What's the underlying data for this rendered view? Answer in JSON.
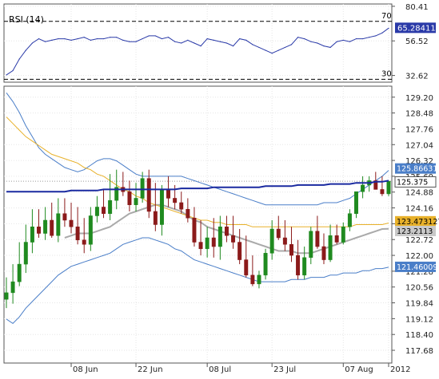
{
  "chart_data": [
    {
      "type": "line",
      "title": "RSI (14)",
      "ylim": [
        28,
        82
      ],
      "y_ticks": [
        "80.41",
        "56.52",
        "32.62"
      ],
      "levels": [
        {
          "value": 70,
          "label": "70"
        },
        {
          "value": 30,
          "label": "30"
        }
      ],
      "last_value_label": "65.28411",
      "x": [
        "2012-05-25",
        "2012-05-28",
        "2012-05-29",
        "2012-05-30",
        "2012-05-31",
        "2012-06-01",
        "2012-06-04",
        "2012-06-05",
        "2012-06-06",
        "2012-06-07",
        "2012-06-08",
        "2012-06-11",
        "2012-06-12",
        "2012-06-13",
        "2012-06-14",
        "2012-06-15",
        "2012-06-18",
        "2012-06-19",
        "2012-06-20",
        "2012-06-21",
        "2012-06-22",
        "2012-06-25",
        "2012-06-26",
        "2012-06-27",
        "2012-06-28",
        "2012-06-29",
        "2012-07-02",
        "2012-07-03",
        "2012-07-04",
        "2012-07-05",
        "2012-07-06",
        "2012-07-09",
        "2012-07-10",
        "2012-07-11",
        "2012-07-12",
        "2012-07-13",
        "2012-07-16",
        "2012-07-17",
        "2012-07-18",
        "2012-07-19",
        "2012-07-20",
        "2012-07-23",
        "2012-07-24",
        "2012-07-25",
        "2012-07-26",
        "2012-07-27",
        "2012-07-30",
        "2012-07-31",
        "2012-08-01",
        "2012-08-02",
        "2012-08-03",
        "2012-08-06",
        "2012-08-07",
        "2012-08-08",
        "2012-08-09",
        "2012-08-10",
        "2012-08-13",
        "2012-08-14",
        "2012-08-15",
        "2012-08-16"
      ],
      "values": [
        33,
        36,
        44,
        50,
        55,
        58,
        56,
        57,
        58,
        58,
        57,
        58,
        59,
        57,
        58,
        58,
        59,
        59,
        57,
        56,
        56,
        58,
        60,
        60,
        58,
        59,
        56,
        55,
        57,
        55,
        53,
        58,
        57,
        56,
        55,
        53,
        58,
        57,
        54,
        52,
        50,
        48,
        50,
        52,
        54,
        59,
        58,
        56,
        55,
        53,
        52,
        56,
        57,
        56,
        58,
        58,
        59,
        60,
        62,
        65.28
      ],
      "color": "#2a3aa8"
    },
    {
      "type": "candlestick",
      "ylim": [
        117.1,
        129.7
      ],
      "y_ticks": [
        "129.20",
        "128.48",
        "127.76",
        "127.04",
        "126.32",
        "125.60",
        "124.88",
        "124.16",
        "123.44",
        "122.72",
        "122.00",
        "121.28",
        "120.56",
        "119.84",
        "119.12",
        "118.40",
        "117.68"
      ],
      "x_ticks": [
        {
          "date": "2012-06-08",
          "label": "08 Jun"
        },
        {
          "date": "2012-06-22",
          "label": "22 Jun"
        },
        {
          "date": "2012-07-09",
          "label": "08 Jul"
        },
        {
          "date": "2012-07-23",
          "label": "23 Jul"
        },
        {
          "date": "2012-08-07",
          "label": "07 Aug"
        },
        {
          "date": "2012-08-16",
          "label": "2012"
        }
      ],
      "x": [
        "2012-05-25",
        "2012-05-28",
        "2012-05-29",
        "2012-05-30",
        "2012-05-31",
        "2012-06-01",
        "2012-06-04",
        "2012-06-05",
        "2012-06-06",
        "2012-06-07",
        "2012-06-08",
        "2012-06-11",
        "2012-06-12",
        "2012-06-13",
        "2012-06-14",
        "2012-06-15",
        "2012-06-18",
        "2012-06-19",
        "2012-06-20",
        "2012-06-21",
        "2012-06-22",
        "2012-06-25",
        "2012-06-26",
        "2012-06-27",
        "2012-06-28",
        "2012-06-29",
        "2012-07-02",
        "2012-07-03",
        "2012-07-04",
        "2012-07-05",
        "2012-07-06",
        "2012-07-09",
        "2012-07-10",
        "2012-07-11",
        "2012-07-12",
        "2012-07-13",
        "2012-07-16",
        "2012-07-17",
        "2012-07-18",
        "2012-07-19",
        "2012-07-20",
        "2012-07-23",
        "2012-07-24",
        "2012-07-25",
        "2012-07-26",
        "2012-07-27",
        "2012-07-30",
        "2012-07-31",
        "2012-08-01",
        "2012-08-02",
        "2012-08-03",
        "2012-08-06",
        "2012-08-07",
        "2012-08-08",
        "2012-08-09",
        "2012-08-10",
        "2012-08-13",
        "2012-08-14",
        "2012-08-15",
        "2012-08-16"
      ],
      "open": [
        120.0,
        120.3,
        120.8,
        121.6,
        122.6,
        123.3,
        123.0,
        123.6,
        122.9,
        123.9,
        123.6,
        123.3,
        122.7,
        122.5,
        123.8,
        124.2,
        123.9,
        124.5,
        125.1,
        124.9,
        124.3,
        124.6,
        125.5,
        124.0,
        123.4,
        125.0,
        124.6,
        124.4,
        124.1,
        123.7,
        122.6,
        122.3,
        122.8,
        122.4,
        123.3,
        122.9,
        122.6,
        121.8,
        121.1,
        120.7,
        121.1,
        122.1,
        123.2,
        122.8,
        122.5,
        122.0,
        121.1,
        121.9,
        123.1,
        122.4,
        121.8,
        122.9,
        122.6,
        123.3,
        123.9,
        124.9,
        125.2,
        125.4,
        125.0,
        124.8
      ],
      "high": [
        121.0,
        121.6,
        122.6,
        123.4,
        124.1,
        124.1,
        124.2,
        124.4,
        124.6,
        124.6,
        124.4,
        124.2,
        123.7,
        124.2,
        124.7,
        125.0,
        125.7,
        125.9,
        125.8,
        125.4,
        125.3,
        125.8,
        125.9,
        125.3,
        125.2,
        125.6,
        125.2,
        124.9,
        124.6,
        124.2,
        123.6,
        123.3,
        123.7,
        123.8,
        123.8,
        123.8,
        123.2,
        122.9,
        122.0,
        121.3,
        122.3,
        123.6,
        123.8,
        123.6,
        123.3,
        122.7,
        122.4,
        123.3,
        123.8,
        123.0,
        123.4,
        123.4,
        123.5,
        124.1,
        124.9,
        125.6,
        125.6,
        125.8,
        125.6,
        125.4
      ],
      "low": [
        119.6,
        119.8,
        120.6,
        121.2,
        122.1,
        122.8,
        122.7,
        122.8,
        122.6,
        123.3,
        123.0,
        122.5,
        122.1,
        122.2,
        123.5,
        123.7,
        123.6,
        124.1,
        124.7,
        124.0,
        124.0,
        124.4,
        123.7,
        123.1,
        122.9,
        124.2,
        124.1,
        123.9,
        123.5,
        122.4,
        122.0,
        121.9,
        121.9,
        121.8,
        122.6,
        122.3,
        121.6,
        121.0,
        120.6,
        120.5,
        120.9,
        121.8,
        122.7,
        122.2,
        121.7,
        120.9,
        120.9,
        121.6,
        122.3,
        121.6,
        121.7,
        122.5,
        122.5,
        123.1,
        123.7,
        124.6,
        124.9,
        125.0,
        124.7,
        124.7
      ],
      "close": [
        120.3,
        120.8,
        121.6,
        122.6,
        123.3,
        123.0,
        123.6,
        122.9,
        123.9,
        123.6,
        123.3,
        122.7,
        122.5,
        123.8,
        124.2,
        123.9,
        124.5,
        125.1,
        124.9,
        124.3,
        124.6,
        125.5,
        124.0,
        123.4,
        125.0,
        124.6,
        124.4,
        124.1,
        123.7,
        122.6,
        122.3,
        122.8,
        122.4,
        123.3,
        122.9,
        122.6,
        121.8,
        121.1,
        120.7,
        121.1,
        122.1,
        123.2,
        122.8,
        122.5,
        122.0,
        121.1,
        121.9,
        123.1,
        122.4,
        121.8,
        122.9,
        122.6,
        123.3,
        123.9,
        124.9,
        125.2,
        125.4,
        125.0,
        124.8,
        125.375
      ],
      "up_color": "#1f8a1f",
      "down_color": "#8b1a1a",
      "series": [
        {
          "kind": "upper band",
          "color": "#4a7ec8",
          "last_label": "125.866314",
          "values": [
            129.4,
            129.0,
            128.5,
            127.9,
            127.4,
            126.9,
            126.6,
            126.4,
            126.2,
            126.0,
            125.9,
            125.8,
            125.9,
            126.1,
            126.3,
            126.4,
            126.4,
            126.3,
            126.1,
            125.9,
            125.7,
            125.6,
            125.6,
            125.6,
            125.6,
            125.6,
            125.6,
            125.6,
            125.5,
            125.4,
            125.3,
            125.2,
            125.1,
            125.0,
            124.9,
            124.8,
            124.7,
            124.6,
            124.5,
            124.4,
            124.3,
            124.3,
            124.3,
            124.3,
            124.3,
            124.3,
            124.3,
            124.3,
            124.3,
            124.4,
            124.4,
            124.4,
            124.5,
            124.6,
            124.8,
            125.0,
            125.2,
            125.4,
            125.6,
            125.866
          ]
        },
        {
          "kind": "lower band",
          "color": "#4a7ec8",
          "last_label": "121.460094",
          "values": [
            119.1,
            118.9,
            119.2,
            119.6,
            119.9,
            120.2,
            120.5,
            120.8,
            121.1,
            121.3,
            121.5,
            121.6,
            121.7,
            121.8,
            121.9,
            122.0,
            122.1,
            122.3,
            122.5,
            122.6,
            122.7,
            122.8,
            122.8,
            122.7,
            122.6,
            122.5,
            122.3,
            122.2,
            122.0,
            121.8,
            121.7,
            121.6,
            121.5,
            121.4,
            121.3,
            121.2,
            121.1,
            121.0,
            120.9,
            120.8,
            120.8,
            120.8,
            120.8,
            120.8,
            120.9,
            120.9,
            120.9,
            121.0,
            121.0,
            121.0,
            121.1,
            121.1,
            121.2,
            121.2,
            121.2,
            121.3,
            121.3,
            121.4,
            121.4,
            121.46
          ]
        },
        {
          "kind": "gray average",
          "color": "#aaaaaa",
          "last_label": "123.2113",
          "values": [
            null,
            null,
            null,
            null,
            null,
            null,
            null,
            null,
            null,
            122.8,
            122.9,
            123.0,
            123.0,
            123.0,
            123.1,
            123.2,
            123.3,
            123.5,
            123.7,
            123.9,
            124.0,
            124.1,
            124.2,
            124.3,
            124.3,
            124.2,
            124.1,
            124.0,
            123.8,
            123.6,
            123.5,
            123.3,
            123.2,
            123.1,
            123.0,
            122.9,
            122.8,
            122.7,
            122.6,
            122.5,
            122.4,
            122.3,
            122.2,
            122.2,
            122.2,
            122.1,
            122.1,
            122.1,
            122.2,
            122.3,
            122.4,
            122.5,
            122.6,
            122.7,
            122.8,
            122.9,
            123.0,
            123.1,
            123.2,
            123.211
          ]
        },
        {
          "kind": "orange average",
          "color": "#e8b12a",
          "last_label": "123.473127",
          "values": [
            128.3,
            128.0,
            127.7,
            127.4,
            127.2,
            127.0,
            126.8,
            126.6,
            126.5,
            126.4,
            126.3,
            126.2,
            126.0,
            125.9,
            125.7,
            125.6,
            125.4,
            125.2,
            125.0,
            124.9,
            124.7,
            124.6,
            124.4,
            124.3,
            124.2,
            124.1,
            124.0,
            123.9,
            123.8,
            123.7,
            123.6,
            123.6,
            123.5,
            123.5,
            123.4,
            123.4,
            123.4,
            123.4,
            123.3,
            123.3,
            123.3,
            123.3,
            123.3,
            123.3,
            123.3,
            123.3,
            123.3,
            123.3,
            123.3,
            123.3,
            123.3,
            123.3,
            123.3,
            123.3,
            123.4,
            123.4,
            123.4,
            123.4,
            123.4,
            123.473
          ]
        },
        {
          "kind": "blue average",
          "color": "#1a2aa0",
          "last_label": "",
          "values": [
            124.9,
            124.9,
            124.9,
            124.9,
            124.9,
            124.9,
            124.9,
            124.9,
            124.9,
            124.9,
            124.95,
            124.95,
            124.95,
            124.95,
            124.95,
            125.0,
            125.0,
            125.0,
            125.0,
            125.0,
            125.0,
            125.0,
            125.0,
            125.0,
            125.0,
            125.0,
            125.0,
            125.05,
            125.05,
            125.05,
            125.05,
            125.05,
            125.1,
            125.1,
            125.1,
            125.1,
            125.1,
            125.1,
            125.1,
            125.1,
            125.15,
            125.15,
            125.15,
            125.15,
            125.15,
            125.2,
            125.2,
            125.2,
            125.2,
            125.2,
            125.25,
            125.25,
            125.25,
            125.25,
            125.3,
            125.3,
            125.3,
            125.35,
            125.35,
            125.4
          ]
        }
      ],
      "last_price_label": "125.375"
    }
  ]
}
